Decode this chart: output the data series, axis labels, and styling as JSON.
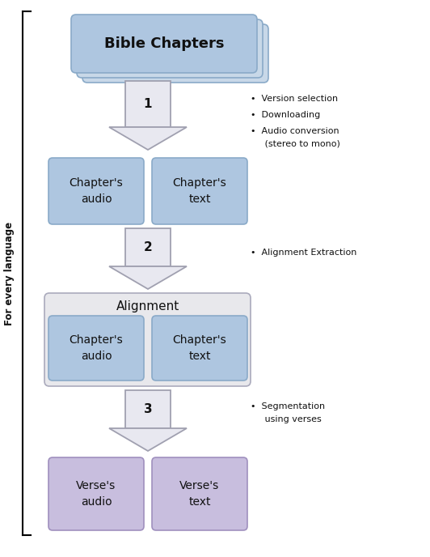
{
  "bg_color": "#ffffff",
  "bible_chapters_color": "#aec6e0",
  "bible_chapters_border": "#8aaac8",
  "chapter_box_color": "#aec6e0",
  "chapter_box_border": "#8aaac8",
  "alignment_bg_color": "#e8e8ec",
  "alignment_border": "#aaaabc",
  "verse_box_color": "#c8bede",
  "verse_box_border": "#a090be",
  "arrow_color": "#a0a0b0",
  "arrow_fill": "#e8e8f0",
  "label_color": "#111111",
  "side_label": "For every language",
  "title_box": "Bible Chapters",
  "step1_label": "1",
  "step2_label": "2",
  "step3_label": "3",
  "audio_label1": "Chapter's\naudio",
  "text_label1": "Chapter's\ntext",
  "alignment_title": "Alignment",
  "audio_label2": "Chapter's\naudio",
  "text_label2": "Chapter's\ntext",
  "audio_label3": "Verse's\naudio",
  "text_label3": "Verse's\ntext",
  "bullet1": "Version selection",
  "bullet2": "Downloading",
  "bullet3": "Audio conversion",
  "bullet3b": "(stereo to mono)",
  "bullet4": "Alignment Extraction",
  "bullet5": "Segmentation",
  "bullet5b": "using verses",
  "figsize": [
    5.32,
    6.88
  ],
  "dpi": 100
}
